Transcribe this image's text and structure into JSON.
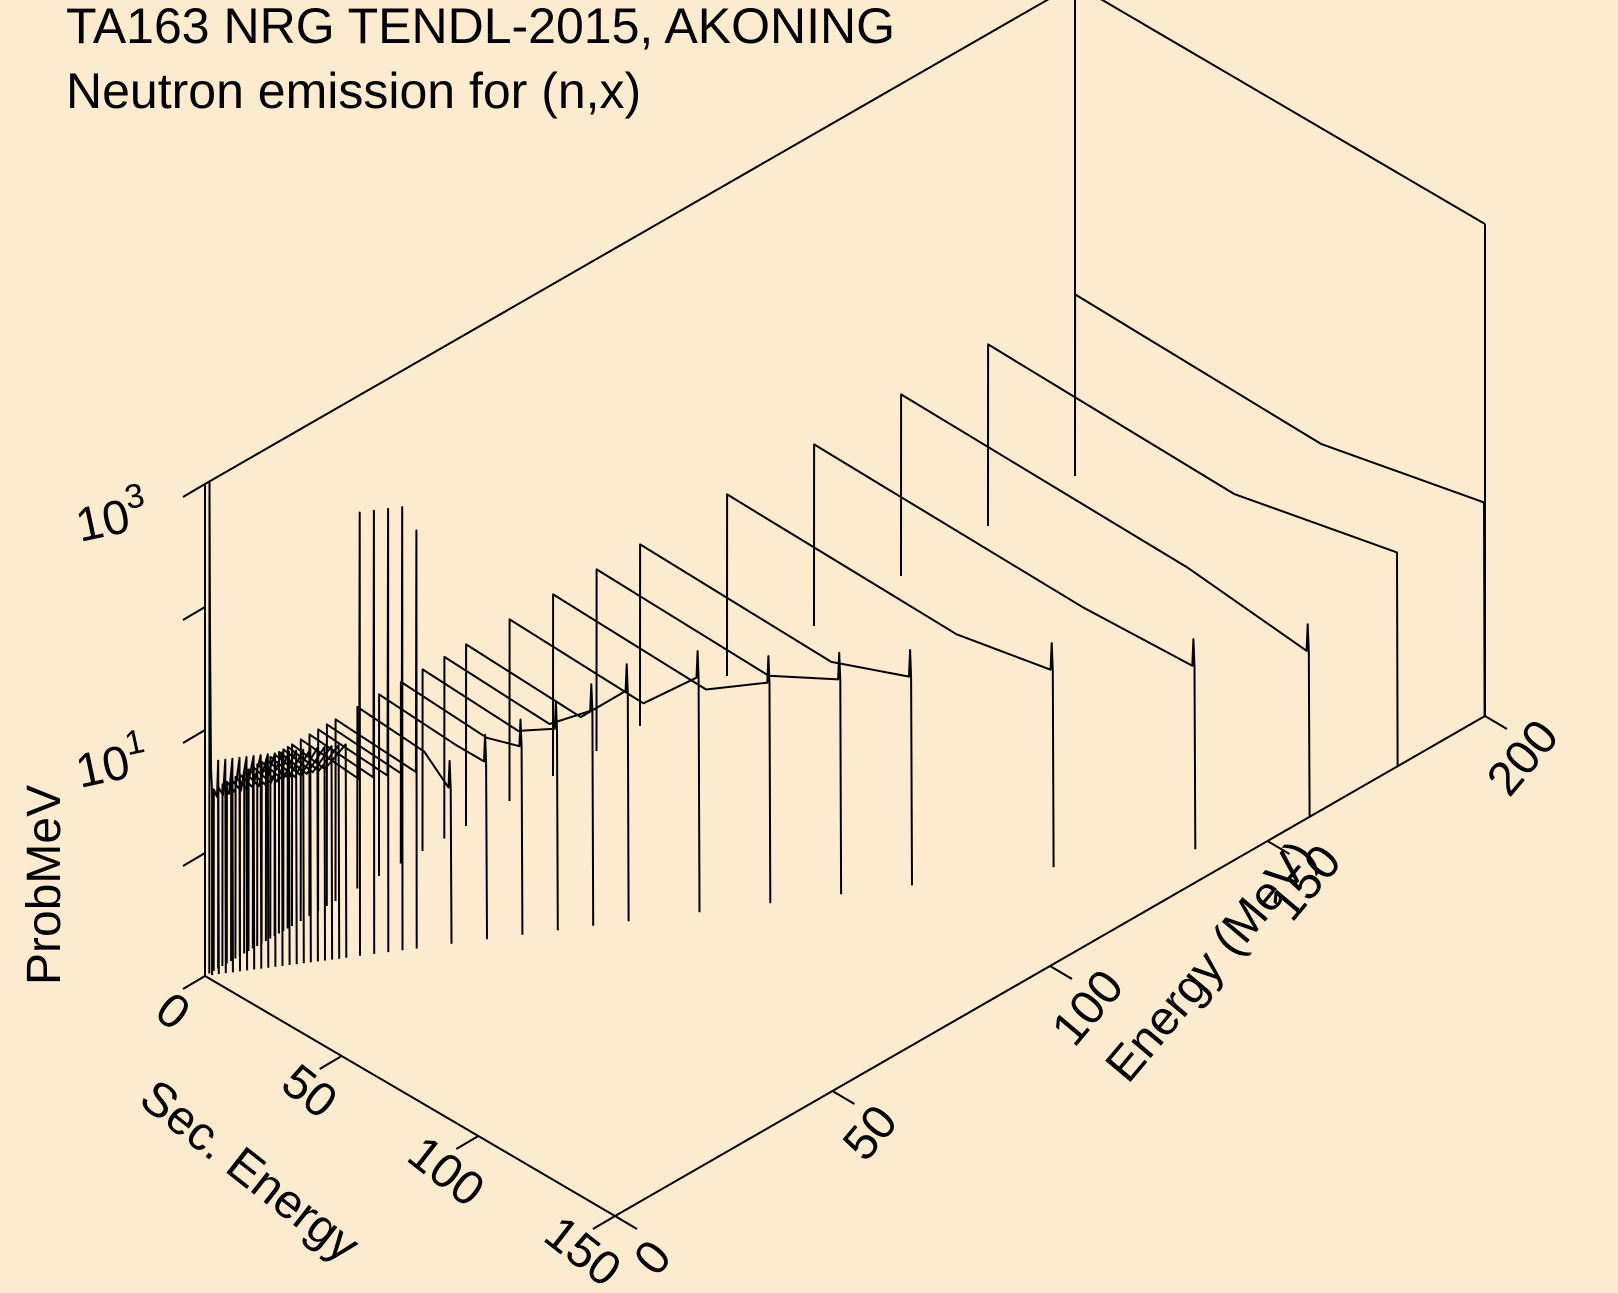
{
  "page": {
    "background": "#fdebd0",
    "line_color": "#000000"
  },
  "chart_data": {
    "type": "surface-3d",
    "title": "TA163 NRG TENDL-2015, AKONING",
    "subtitle": "Neutron emission for (n,x)",
    "axes": {
      "x": {
        "label": "Sec. Energy",
        "range": [
          0,
          150
        ],
        "ticks": [
          "0",
          "50",
          "100",
          "150"
        ]
      },
      "y": {
        "label": "Energy (MeV)",
        "range": [
          0,
          200
        ],
        "ticks": [
          "0",
          "50",
          "100",
          "150",
          "200"
        ]
      },
      "z": {
        "label": "ProbMeV",
        "scale": "log",
        "range": [
          0.1,
          1000
        ],
        "major_ticks": [
          {
            "base": "10",
            "exp": "1"
          },
          {
            "base": "10",
            "exp": "3"
          }
        ],
        "minor_ticks": [
          1,
          100
        ]
      }
    },
    "grid": false,
    "legend": "none",
    "series": {
      "incident_energies": [
        1,
        2,
        3,
        4,
        5,
        6,
        7,
        8,
        9,
        10,
        11,
        12,
        13,
        14,
        15,
        16,
        17,
        18,
        19,
        20,
        22,
        24,
        26,
        28,
        30,
        35,
        40,
        45,
        50,
        55,
        60,
        70,
        80,
        90,
        100,
        120,
        140,
        160,
        180,
        200
      ],
      "low_energy_peak": 1000,
      "evaporation_plateau": 3.0,
      "high_energy_ridge": [
        {
          "energy": 22,
          "peak": 400
        },
        {
          "energy": 24,
          "peak": 400
        },
        {
          "energy": 26,
          "peak": 400
        },
        {
          "energy": 28,
          "peak": 400
        },
        {
          "energy": 30,
          "peak": 250
        },
        {
          "energy": 35,
          "peak": 3.0
        },
        {
          "energy": 40,
          "peak": 4.5
        },
        {
          "energy": 45,
          "peak": 5.5
        },
        {
          "energy": 50,
          "peak": 7.0
        },
        {
          "energy": 55,
          "peak": 9.0
        },
        {
          "energy": 60,
          "peak": 12
        },
        {
          "energy": 70,
          "peak": 13
        },
        {
          "energy": 80,
          "peak": 10
        },
        {
          "energy": 90,
          "peak": 9.0
        },
        {
          "energy": 100,
          "peak": 8.0
        },
        {
          "energy": 120,
          "peak": 6.5
        },
        {
          "energy": 140,
          "peak": 5.0
        },
        {
          "energy": 160,
          "peak": 3.5
        }
      ]
    }
  }
}
